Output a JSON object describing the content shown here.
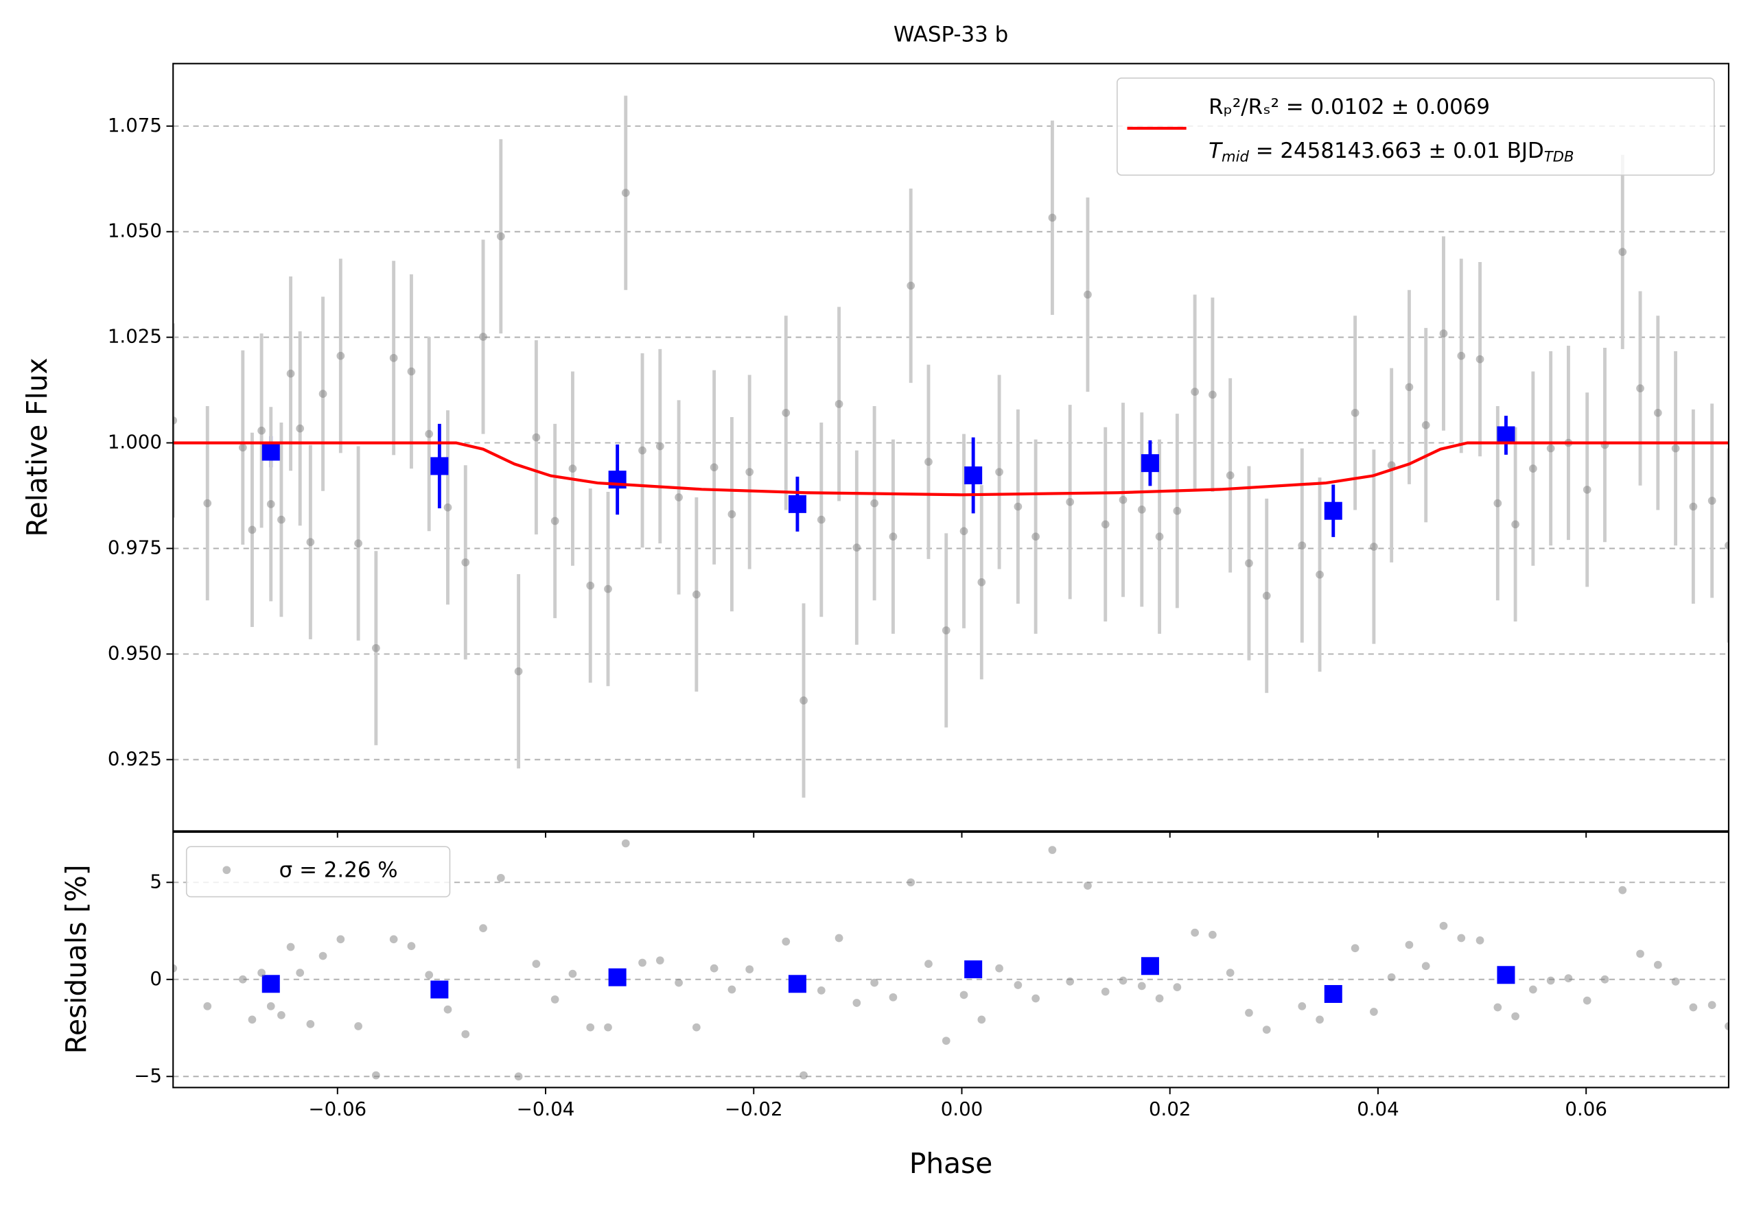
{
  "chart_data": [
    {
      "type": "scatter",
      "title": "WASP-33 b",
      "ylabel": "Relative Flux",
      "xlim": [
        -0.0758,
        0.0737
      ],
      "ylim": [
        0.9081,
        1.0898
      ],
      "yticks": [
        0.925,
        {
          "value": 0.95,
          "label": "0.950"
        },
        0.975,
        {
          "value": 1,
          "label": "1.000"
        },
        1.025,
        {
          "value": 1.05,
          "label": "1.050"
        },
        1.075
      ],
      "grid": true,
      "legend": "upper right",
      "legend_note_parts": [
        "T",
        "mid",
        " = 2458143.663 ± 0.01 BJD",
        "TDB"
      ],
      "series": [
        {
          "name": "Rₚ²/Rₛ² = 0.0102 ± 0.0069",
          "color": "#ff0000",
          "kind": "line",
          "x": [
            -0.0758,
            -0.0486,
            -0.046,
            -0.043,
            -0.0395,
            -0.035,
            -0.025,
            -0.015,
            0,
            0.015,
            0.025,
            0.035,
            0.0395,
            0.043,
            0.046,
            0.0486,
            0.0737
          ],
          "values": [
            1,
            1,
            0.9985,
            0.995,
            0.9922,
            0.9905,
            0.989,
            0.9882,
            0.9877,
            0.9882,
            0.989,
            0.9905,
            0.9922,
            0.995,
            0.9985,
            1,
            1
          ]
        },
        {
          "color": "#808080",
          "kind": "errorbar",
          "marker": "o",
          "error": 0.023,
          "x": [
            -0.0758,
            -0.0725,
            -0.0691,
            -0.0682,
            -0.0673,
            -0.0664,
            -0.0654,
            -0.0645,
            -0.0636,
            -0.0626,
            -0.0614,
            -0.0597,
            -0.058,
            -0.0563,
            -0.0546,
            -0.0529,
            -0.0512,
            -0.0494,
            -0.0477,
            -0.046,
            -0.0443,
            -0.0426,
            -0.0409,
            -0.0391,
            -0.0374,
            -0.0357,
            -0.034,
            -0.0323,
            -0.0307,
            -0.029,
            -0.0272,
            -0.0255,
            -0.0238,
            -0.0221,
            -0.0204,
            -0.0169,
            -0.0152,
            -0.0135,
            -0.0118,
            -0.0101,
            -0.0084,
            -0.0066,
            -0.0049,
            -0.0032,
            -0.0015,
            0.0002,
            0.0019,
            0.0036,
            0.0054,
            0.0071,
            0.0087,
            0.0104,
            0.0121,
            0.0138,
            0.0155,
            0.0173,
            0.019,
            0.0207,
            0.0224,
            0.0241,
            0.0258,
            0.0276,
            0.0293,
            0.0327,
            0.0344,
            0.0378,
            0.0396,
            0.0413,
            0.043,
            0.0446,
            0.0463,
            0.048,
            0.0498,
            0.0515,
            0.0532,
            0.0549,
            0.0566,
            0.0583,
            0.0601,
            0.0618,
            0.0635,
            0.0652,
            0.0669,
            0.0686,
            0.0703,
            0.0721,
            0.0737
          ],
          "values": [
            1.0053,
            0.9857,
            0.9989,
            0.9794,
            1.0029,
            0.9855,
            0.9818,
            1.0164,
            1.0034,
            0.9765,
            1.0116,
            1.0206,
            0.9762,
            0.9514,
            1.0201,
            1.0169,
            1.0021,
            0.9847,
            0.9717,
            1.0251,
            1.0489,
            0.9459,
            1.0013,
            0.9815,
            0.9939,
            0.9662,
            0.9654,
            1.0592,
            0.9982,
            0.9992,
            0.9871,
            0.9641,
            0.9942,
            0.9831,
            0.9931,
            1.0071,
            0.939,
            0.9818,
            1.0092,
            0.9752,
            0.9857,
            0.9778,
            1.0372,
            0.9955,
            0.9556,
            0.9791,
            0.967,
            0.9931,
            0.9849,
            0.9778,
            1.0533,
            0.986,
            1.0351,
            0.9807,
            0.9865,
            0.9842,
            0.9778,
            0.9839,
            1.0121,
            1.0114,
            0.9923,
            0.9715,
            0.9638,
            0.9757,
            0.9688,
            1.0071,
            0.9754,
            0.9947,
            1.0132,
            1.0042,
            1.0259,
            1.0206,
            1.0198,
            0.9857,
            0.9807,
            0.9939,
            0.9987,
            1,
            0.9889,
            0.9995,
            1.0452,
            1.0129,
            1.0071,
            0.9987,
            0.9849,
            0.9863,
            0.9757
          ]
        },
        {
          "color": "#0000ff",
          "kind": "errorbar",
          "marker": "s",
          "x": [
            -0.0664,
            -0.0502,
            -0.0331,
            -0.0158,
            0.0011,
            0.0181,
            0.0357,
            0.0523
          ],
          "values": [
            0.9979,
            0.9945,
            0.9913,
            0.9855,
            0.9923,
            0.9952,
            0.9839,
            1.0018
          ],
          "errors": [
            0.0037,
            0.01,
            0.0083,
            0.0065,
            0.009,
            0.0054,
            0.0062,
            0.0046
          ]
        }
      ]
    },
    {
      "type": "scatter",
      "xlabel": "Phase",
      "ylabel": "Residuals [%]",
      "xlim": [
        -0.0758,
        0.0737
      ],
      "ylim": [
        -5.57,
        7.59
      ],
      "xticks": [
        {
          "value": -0.06,
          "label": "−0.06"
        },
        {
          "value": -0.04,
          "label": "−0.04"
        },
        {
          "value": -0.02,
          "label": "−0.02"
        },
        {
          "value": 0,
          "label": "0.00"
        },
        {
          "value": 0.02,
          "label": "0.02"
        },
        {
          "value": 0.04,
          "label": "0.04"
        },
        {
          "value": 0.06,
          "label": "0.06"
        }
      ],
      "yticks": [
        {
          "value": -5,
          "label": "−5"
        },
        0,
        5
      ],
      "grid": true,
      "legend": "upper left",
      "series": [
        {
          "name": "σ = 2.26 %",
          "color": "#808080",
          "kind": "errorbar",
          "marker": "o",
          "x": [
            -0.0758,
            -0.0725,
            -0.0691,
            -0.0682,
            -0.0673,
            -0.0664,
            -0.0654,
            -0.0645,
            -0.0636,
            -0.0626,
            -0.0614,
            -0.0597,
            -0.058,
            -0.0563,
            -0.0546,
            -0.0529,
            -0.0512,
            -0.0494,
            -0.0477,
            -0.046,
            -0.0443,
            -0.0426,
            -0.0409,
            -0.0391,
            -0.0374,
            -0.0357,
            -0.034,
            -0.0323,
            -0.0307,
            -0.029,
            -0.0272,
            -0.0255,
            -0.0238,
            -0.0221,
            -0.0204,
            -0.0169,
            -0.0152,
            -0.0135,
            -0.0118,
            -0.0101,
            -0.0084,
            -0.0066,
            -0.0049,
            -0.0032,
            -0.0015,
            0.0002,
            0.0019,
            0.0036,
            0.0054,
            0.0071,
            0.0087,
            0.0104,
            0.0121,
            0.0138,
            0.0155,
            0.0173,
            0.019,
            0.0207,
            0.0224,
            0.0241,
            0.0258,
            0.0276,
            0.0293,
            0.0327,
            0.0344,
            0.0378,
            0.0396,
            0.0413,
            0.043,
            0.0446,
            0.0463,
            0.048,
            0.0498,
            0.0515,
            0.0532,
            0.0549,
            0.0566,
            0.0583,
            0.0601,
            0.0618,
            0.0635,
            0.0652,
            0.0669,
            0.0686,
            0.0703,
            0.0721,
            0.0737
          ],
          "values": [
            0.57,
            -1.38,
            0,
            -2.07,
            0.34,
            -1.38,
            -1.84,
            1.67,
            0.34,
            -2.3,
            1.21,
            2.07,
            -2.41,
            -4.94,
            2.07,
            1.72,
            0.23,
            -1.55,
            -2.82,
            2.64,
            5.23,
            -5,
            0.8,
            -1.03,
            0.29,
            -2.47,
            -2.47,
            7.01,
            0.86,
            0.98,
            -0.17,
            -2.47,
            0.57,
            -0.52,
            0.52,
            1.95,
            -4.94,
            -0.57,
            2.13,
            -1.21,
            -0.17,
            -0.92,
            5,
            0.8,
            -3.16,
            -0.8,
            -2.07,
            0.57,
            -0.29,
            -0.98,
            6.67,
            -0.11,
            4.83,
            -0.63,
            -0.06,
            -0.34,
            -0.98,
            -0.4,
            2.41,
            2.3,
            0.34,
            -1.72,
            -2.59,
            -1.38,
            -2.07,
            1.61,
            -1.67,
            0.11,
            1.78,
            0.69,
            2.76,
            2.13,
            2.01,
            -1.44,
            -1.9,
            -0.52,
            -0.06,
            0.06,
            -1.09,
            0,
            4.6,
            1.32,
            0.75,
            -0.11,
            -1.44,
            -1.32,
            -2.41
          ]
        },
        {
          "color": "#0000ff",
          "kind": "errorbar",
          "marker": "s",
          "x": [
            -0.0664,
            -0.0502,
            -0.0331,
            -0.0158,
            0.0011,
            0.0181,
            0.0357,
            0.0523
          ],
          "values": [
            -0.23,
            -0.52,
            0.11,
            -0.23,
            0.52,
            0.69,
            -0.75,
            0.23
          ]
        }
      ]
    }
  ]
}
